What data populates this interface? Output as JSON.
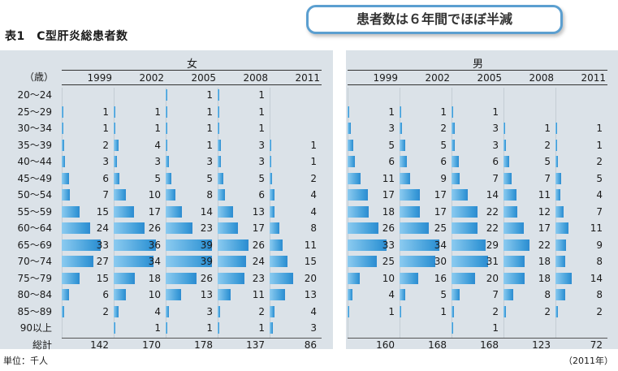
{
  "title": "表1　C型肝炎総患者数",
  "callout": "患者数は６年間でほぼ半減",
  "age_unit": "（歳）",
  "footer_left": "単位：千人",
  "footer_right": "（2011年）",
  "colors": {
    "bar": "#3a9ad8",
    "panel": "#dbe2e8",
    "callout_border": "#5b9fd0"
  },
  "chart_data": {
    "type": "bar",
    "orientation": "horizontal",
    "years": [
      "1999",
      "2002",
      "2005",
      "2008",
      "2011"
    ],
    "categories": [
      "20～24",
      "25～29",
      "30～34",
      "35～39",
      "40～44",
      "45～49",
      "50～54",
      "55～59",
      "60～64",
      "65～69",
      "70～74",
      "75～79",
      "80～84",
      "85～89",
      "90以上"
    ],
    "total_label": "総計",
    "xlim": [
      0,
      40
    ],
    "panels": [
      {
        "name": "女",
        "series": [
          {
            "name": "1999",
            "values": [
              null,
              1,
              1,
              2,
              3,
              6,
              7,
              15,
              24,
              33,
              27,
              15,
              6,
              2,
              null
            ],
            "total": 142
          },
          {
            "name": "2002",
            "values": [
              null,
              1,
              1,
              4,
              3,
              5,
              10,
              17,
              26,
              36,
              34,
              18,
              10,
              4,
              1
            ],
            "total": 170
          },
          {
            "name": "2005",
            "values": [
              1,
              1,
              1,
              1,
              3,
              5,
              8,
              14,
              23,
              39,
              39,
              26,
              13,
              3,
              1
            ],
            "total": 178
          },
          {
            "name": "2008",
            "values": [
              1,
              1,
              1,
              3,
              3,
              5,
              6,
              13,
              17,
              26,
              24,
              23,
              11,
              2,
              1
            ],
            "total": 137
          },
          {
            "name": "2011",
            "values": [
              null,
              null,
              null,
              1,
              1,
              2,
              4,
              4,
              8,
              11,
              15,
              20,
              13,
              4,
              3
            ],
            "total": 86
          }
        ]
      },
      {
        "name": "男",
        "series": [
          {
            "name": "1999",
            "values": [
              null,
              1,
              3,
              5,
              6,
              11,
              17,
              18,
              26,
              33,
              25,
              10,
              4,
              1,
              null
            ],
            "total": 160
          },
          {
            "name": "2002",
            "values": [
              null,
              1,
              2,
              5,
              6,
              9,
              17,
              17,
              25,
              34,
              30,
              16,
              5,
              1,
              null
            ],
            "total": 168
          },
          {
            "name": "2005",
            "values": [
              null,
              1,
              3,
              3,
              6,
              7,
              14,
              22,
              22,
              29,
              31,
              20,
              7,
              2,
              1
            ],
            "total": 168
          },
          {
            "name": "2008",
            "values": [
              null,
              null,
              1,
              2,
              5,
              7,
              11,
              12,
              17,
              22,
              18,
              18,
              8,
              2,
              null
            ],
            "total": 123
          },
          {
            "name": "2011",
            "values": [
              null,
              null,
              1,
              1,
              2,
              5,
              4,
              7,
              11,
              9,
              8,
              14,
              8,
              2,
              null
            ],
            "total": 72
          }
        ]
      }
    ]
  }
}
